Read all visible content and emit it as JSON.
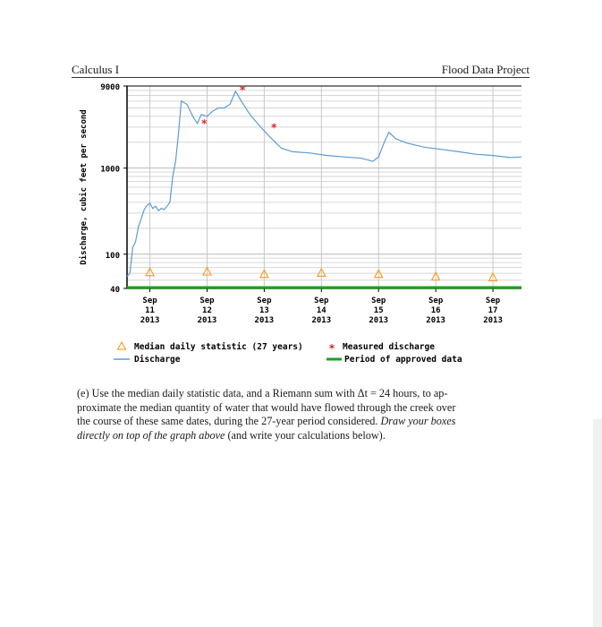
{
  "header": {
    "left": "Calculus I",
    "right": "Flood Data Project"
  },
  "chart_data": {
    "type": "line",
    "yscale": "log",
    "ylabel": "Discharge, cubic feet per second",
    "ylim": [
      40,
      9000
    ],
    "yticks": [
      {
        "value": 9000,
        "label": "9000"
      },
      {
        "value": 1000,
        "label": "1000"
      },
      {
        "value": 100,
        "label": "100"
      },
      {
        "value": 40,
        "label": "40"
      }
    ],
    "xlim": [
      10.6,
      17.5
    ],
    "xticks": [
      {
        "x": 11,
        "lines": [
          "Sep",
          "11",
          "2013"
        ]
      },
      {
        "x": 12,
        "lines": [
          "Sep",
          "12",
          "2013"
        ]
      },
      {
        "x": 13,
        "lines": [
          "Sep",
          "13",
          "2013"
        ]
      },
      {
        "x": 14,
        "lines": [
          "Sep",
          "14",
          "2013"
        ]
      },
      {
        "x": 15,
        "lines": [
          "Sep",
          "15",
          "2013"
        ]
      },
      {
        "x": 16,
        "lines": [
          "Sep",
          "16",
          "2013"
        ]
      },
      {
        "x": 17,
        "lines": [
          "Sep",
          "17",
          "2013"
        ]
      }
    ],
    "series": [
      {
        "name": "Discharge",
        "color": "#5b9bd5",
        "points": [
          [
            10.6,
            55
          ],
          [
            10.65,
            60
          ],
          [
            10.7,
            120
          ],
          [
            10.75,
            140
          ],
          [
            10.8,
            210
          ],
          [
            10.85,
            260
          ],
          [
            10.9,
            330
          ],
          [
            10.95,
            370
          ],
          [
            11.0,
            390
          ],
          [
            11.05,
            340
          ],
          [
            11.1,
            360
          ],
          [
            11.15,
            320
          ],
          [
            11.2,
            340
          ],
          [
            11.25,
            330
          ],
          [
            11.3,
            360
          ],
          [
            11.35,
            400
          ],
          [
            11.4,
            800
          ],
          [
            11.45,
            1200
          ],
          [
            11.5,
            2500
          ],
          [
            11.55,
            6000
          ],
          [
            11.65,
            5500
          ],
          [
            11.75,
            4000
          ],
          [
            11.83,
            3300
          ],
          [
            11.9,
            4200
          ],
          [
            12.0,
            4000
          ],
          [
            12.1,
            4600
          ],
          [
            12.2,
            5000
          ],
          [
            12.3,
            5000
          ],
          [
            12.4,
            5500
          ],
          [
            12.5,
            7800
          ],
          [
            12.6,
            6000
          ],
          [
            12.75,
            4200
          ],
          [
            12.9,
            3200
          ],
          [
            13.1,
            2300
          ],
          [
            13.3,
            1700
          ],
          [
            13.5,
            1550
          ],
          [
            13.8,
            1500
          ],
          [
            14.1,
            1400
          ],
          [
            14.4,
            1350
          ],
          [
            14.7,
            1300
          ],
          [
            14.9,
            1200
          ],
          [
            15.0,
            1350
          ],
          [
            15.1,
            2000
          ],
          [
            15.18,
            2600
          ],
          [
            15.3,
            2200
          ],
          [
            15.5,
            1950
          ],
          [
            15.8,
            1750
          ],
          [
            16.1,
            1650
          ],
          [
            16.4,
            1550
          ],
          [
            16.7,
            1450
          ],
          [
            17.0,
            1400
          ],
          [
            17.3,
            1330
          ],
          [
            17.5,
            1350
          ]
        ]
      }
    ],
    "measured": {
      "name": "Measured discharge",
      "color": "#e0202a",
      "points": [
        [
          11.95,
          3300
        ],
        [
          12.62,
          8100
        ],
        [
          13.17,
          2950
        ]
      ]
    },
    "median": {
      "name": "Median daily statistic (27 years)",
      "color": "#f4a22a",
      "points": [
        [
          11,
          62
        ],
        [
          12,
          63
        ],
        [
          13,
          59
        ],
        [
          14,
          61
        ],
        [
          15,
          59
        ],
        [
          16,
          55
        ],
        [
          17,
          54
        ]
      ]
    },
    "approved": {
      "name": "Period of approved data",
      "color": "#1aa31a"
    },
    "grid": true
  },
  "legend": {
    "median": "Median daily statistic (27 years)",
    "measured": "Measured discharge",
    "discharge": "Discharge",
    "approved": "Period of approved data"
  },
  "question": {
    "line1": "(e) Use the median daily statistic data, and a Riemann sum with Δt = 24 hours, to ap-",
    "line2": "proximate the median quantity of water that would have flowed through the creek over",
    "line3a": "the course of these same dates, during the 27-year period considered.",
    "line3b": "Draw your boxes",
    "line4a": "directly on top of the graph above",
    "line4b": "(and write your calculations below)."
  }
}
